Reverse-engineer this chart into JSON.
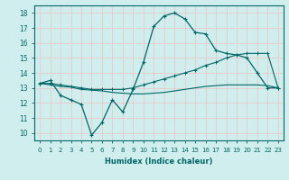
{
  "xlabel": "Humidex (Indice chaleur)",
  "ylabel": "",
  "background_color": "#d0eeee",
  "grid_color": "#c8e8e8",
  "line_color": "#006666",
  "xlim": [
    -0.5,
    23.5
  ],
  "ylim": [
    9.5,
    18.5
  ],
  "yticks": [
    10,
    11,
    12,
    13,
    14,
    15,
    16,
    17,
    18
  ],
  "xticks": [
    0,
    1,
    2,
    3,
    4,
    5,
    6,
    7,
    8,
    9,
    10,
    11,
    12,
    13,
    14,
    15,
    16,
    17,
    18,
    19,
    20,
    21,
    22,
    23
  ],
  "line1_x": [
    0,
    1,
    2,
    3,
    4,
    5,
    6,
    7,
    8,
    9,
    10,
    11,
    12,
    13,
    14,
    15,
    16,
    17,
    18,
    19,
    20,
    21,
    22,
    23
  ],
  "line1_y": [
    13.3,
    13.5,
    12.5,
    12.2,
    11.9,
    9.85,
    10.7,
    12.2,
    11.4,
    12.9,
    14.7,
    17.1,
    17.8,
    18.0,
    17.6,
    16.7,
    16.6,
    15.5,
    15.3,
    15.2,
    15.0,
    14.0,
    13.0,
    13.0
  ],
  "line2_x": [
    0,
    1,
    2,
    3,
    4,
    5,
    6,
    7,
    8,
    9,
    10,
    11,
    12,
    13,
    14,
    15,
    16,
    17,
    18,
    19,
    20,
    21,
    22,
    23
  ],
  "line2_y": [
    13.3,
    13.3,
    13.2,
    13.1,
    13.0,
    12.9,
    12.9,
    12.9,
    12.9,
    13.0,
    13.2,
    13.4,
    13.6,
    13.8,
    14.0,
    14.2,
    14.5,
    14.7,
    15.0,
    15.2,
    15.3,
    15.3,
    15.3,
    13.0
  ],
  "line3_x": [
    0,
    1,
    2,
    3,
    4,
    5,
    6,
    7,
    8,
    9,
    10,
    11,
    12,
    13,
    14,
    15,
    16,
    17,
    18,
    19,
    20,
    21,
    22,
    23
  ],
  "line3_y": [
    13.3,
    13.2,
    13.1,
    13.05,
    12.9,
    12.85,
    12.8,
    12.7,
    12.65,
    12.6,
    12.6,
    12.65,
    12.7,
    12.8,
    12.9,
    13.0,
    13.1,
    13.15,
    13.2,
    13.2,
    13.2,
    13.2,
    13.15,
    13.0
  ],
  "figwidth": 3.2,
  "figheight": 2.0,
  "dpi": 100
}
